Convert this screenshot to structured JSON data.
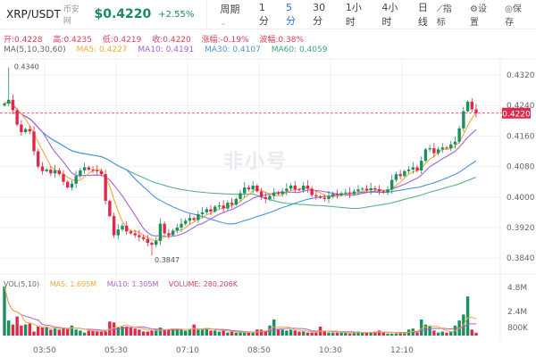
{
  "header": {
    "pair": "XRP/USDT",
    "exchange": "币安网",
    "price": "$0.4220",
    "change": "+2.55%",
    "period_label": "周期",
    "period_chevron": "chevron-down-icon",
    "timeframes": [
      {
        "label": "1分"
      },
      {
        "label": "5分",
        "active": true
      },
      {
        "label": "30分"
      },
      {
        "label": "1小时"
      },
      {
        "label": "4小时"
      },
      {
        "label": "日线"
      }
    ],
    "tools": [
      {
        "icon": "chart-line-icon",
        "label": "指标"
      },
      {
        "icon": "gear-icon",
        "label": "设置"
      },
      {
        "icon": "camera-icon",
        "label": "保存"
      }
    ]
  },
  "ohlc": {
    "open": "开:0.4228",
    "high": "高:0.4235",
    "low": "低:0.4219",
    "close": "收:0.4220",
    "change": "涨幅:-0.19%",
    "amplitude": "波幅:0.38%"
  },
  "ma": {
    "title": "MA(5,10,30,60)",
    "ma5": "MA5: 0.4227",
    "ma10": "MA10: 0.4191",
    "ma30": "MA30: 0.4107",
    "ma60": "MA60: 0.4059"
  },
  "vol": {
    "title": "VOL(5,10)",
    "ma5": "MA5: 1.695M",
    "ma10": "MA10: 1.305M",
    "volume": "VOLUME: 280.206K"
  },
  "watermark": "非小号",
  "colors": {
    "up": "#1b8f5f",
    "down": "#e0294a",
    "ma5": "#f3a93c",
    "ma10": "#a95fd6",
    "ma30": "#4a95dc",
    "ma60": "#5bb386"
  },
  "chart_data": {
    "type": "candlestick",
    "price_ticks": [
      "0.4320",
      "0.4240",
      "0.4160",
      "0.4080",
      "0.4000",
      "0.3920",
      "0.3840"
    ],
    "ylim": [
      0.382,
      0.434
    ],
    "last_price_label": "0.4220",
    "high_label": "0.4340",
    "low_label": "0.3847",
    "time_ticks": [
      "03:50",
      "05:30",
      "07:10",
      "08:50",
      "10:30",
      "12:10"
    ],
    "volume_ticks": [
      "4.8M",
      "2.4M",
      "800K"
    ],
    "closes": [
      0.4245,
      0.4255,
      0.4228,
      0.419,
      0.417,
      0.4178,
      0.4172,
      0.412,
      0.408,
      0.4068,
      0.4072,
      0.4062,
      0.407,
      0.406,
      0.404,
      0.4025,
      0.4035,
      0.4055,
      0.407,
      0.4078,
      0.4072,
      0.407,
      0.4068,
      0.406,
      0.399,
      0.395,
      0.39,
      0.3915,
      0.3925,
      0.391,
      0.3905,
      0.39,
      0.3895,
      0.389,
      0.388,
      0.3875,
      0.3885,
      0.393,
      0.3905,
      0.39,
      0.3912,
      0.392,
      0.393,
      0.3938,
      0.3945,
      0.394,
      0.3955,
      0.396,
      0.3968,
      0.3962,
      0.3975,
      0.3978,
      0.397,
      0.3985,
      0.398,
      0.3995,
      0.401,
      0.4025,
      0.402,
      0.403,
      0.4015,
      0.4,
      0.3995,
      0.4003,
      0.4012,
      0.4008,
      0.4015,
      0.4022,
      0.403,
      0.402,
      0.4018,
      0.403,
      0.4022,
      0.4005,
      0.4002,
      0.3998,
      0.3995,
      0.4002,
      0.4008,
      0.4005,
      0.401,
      0.4012,
      0.4008,
      0.4015,
      0.402,
      0.4022,
      0.4018,
      0.4023,
      0.402,
      0.4015,
      0.4012,
      0.402,
      0.4045,
      0.406,
      0.4055,
      0.4068,
      0.4072,
      0.4078,
      0.407,
      0.4095,
      0.4125,
      0.4128,
      0.4115,
      0.4125,
      0.413,
      0.4128,
      0.4138,
      0.4145,
      0.418,
      0.4225,
      0.425,
      0.423,
      0.422
    ],
    "volumes_m": [
      4.9,
      1.5,
      1.1,
      1.9,
      1.0,
      1.1,
      1.2,
      0.4,
      0.9,
      0.8,
      0.9,
      0.6,
      0.7,
      0.6,
      0.8,
      0.7,
      1.0,
      0.6,
      0.5,
      0.3,
      0.5,
      0.5,
      0.4,
      0.4,
      0.4,
      1.4,
      1.3,
      0.8,
      0.9,
      0.9,
      0.8,
      0.7,
      0.6,
      0.4,
      0.4,
      0.5,
      0.6,
      0.8,
      0.6,
      0.6,
      0.7,
      0.7,
      0.6,
      0.5,
      0.6,
      1.1,
      0.6,
      0.6,
      0.7,
      0.5,
      0.5,
      0.4,
      0.5,
      0.3,
      0.4,
      0.3,
      0.3,
      0.3,
      0.3,
      0.3,
      0.6,
      0.6,
      0.5,
      1.0,
      1.6,
      0.6,
      0.6,
      0.5,
      0.6,
      0.5,
      0.4,
      0.4,
      0.3,
      0.3,
      0.3,
      0.9,
      0.4,
      0.3,
      0.3,
      0.3,
      0.3,
      0.3,
      0.2,
      0.3,
      0.4,
      0.3,
      0.3,
      0.3,
      0.4,
      0.5,
      0.3,
      0.2,
      0.2,
      0.2,
      0.3,
      0.3,
      0.6,
      0.7,
      0.3,
      1.6,
      1.1,
      1.0,
      0.5,
      0.3,
      0.4,
      0.3,
      0.4,
      1.0,
      1.5,
      2.1,
      3.9,
      0.6,
      0.28
    ]
  }
}
